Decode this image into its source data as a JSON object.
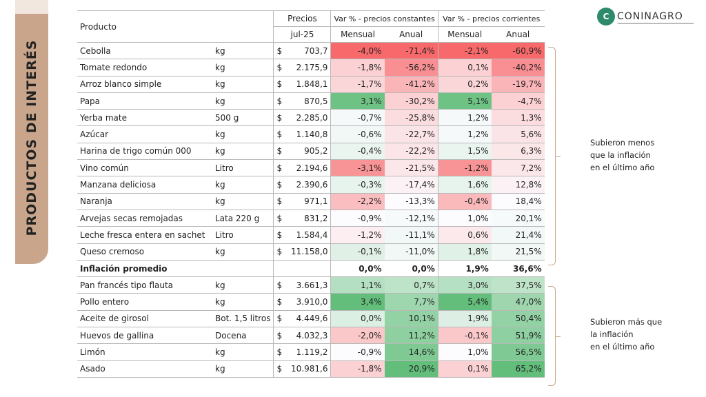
{
  "sidebar": {
    "title": "PRODUCTOS DE INTERÉS"
  },
  "logo": {
    "text": "CONINAGRO"
  },
  "header": {
    "producto": "Producto",
    "precios": "Precios",
    "mes": "jul-25",
    "constantes": "Var % - precios constantes",
    "corrientes": "Var % - precios corrientes",
    "mensual": "Mensual",
    "anual": "Anual"
  },
  "colors": {
    "red": "#f8696b",
    "white": "#fcfcff",
    "green": "#63be7b",
    "bracket": "#c9a68b"
  },
  "rows": [
    {
      "p": "Cebolla",
      "u": "kg",
      "cur": "$",
      "price": "703,7",
      "m1": "-4,0%",
      "a1": "-71,4%",
      "m2": "-2,1%",
      "a2": "-60,9%"
    },
    {
      "p": "Tomate redondo",
      "u": "kg",
      "cur": "$",
      "price": "2.175,9",
      "m1": "-1,8%",
      "a1": "-56,2%",
      "m2": "0,1%",
      "a2": "-40,2%"
    },
    {
      "p": "Arroz blanco simple",
      "u": "kg",
      "cur": "$",
      "price": "1.848,1",
      "m1": "-1,7%",
      "a1": "-41,2%",
      "m2": "0,2%",
      "a2": "-19,7%"
    },
    {
      "p": "Papa",
      "u": "kg",
      "cur": "$",
      "price": "870,5",
      "m1": "3,1%",
      "a1": "-30,2%",
      "m2": "5,1%",
      "a2": "-4,7%"
    },
    {
      "p": "Yerba mate",
      "u": "500 g",
      "cur": "$",
      "price": "2.285,0",
      "m1": "-0,7%",
      "a1": "-25,8%",
      "m2": "1,2%",
      "a2": "1,3%"
    },
    {
      "p": "Azúcar",
      "u": "kg",
      "cur": "$",
      "price": "1.140,8",
      "m1": "-0,6%",
      "a1": "-22,7%",
      "m2": "1,2%",
      "a2": "5,6%"
    },
    {
      "p": "Harina de trigo común 000",
      "u": "kg",
      "cur": "$",
      "price": "905,2",
      "m1": "-0,4%",
      "a1": "-22,2%",
      "m2": "1,5%",
      "a2": "6,3%"
    },
    {
      "p": "Vino común",
      "u": "Litro",
      "cur": "$",
      "price": "2.194,6",
      "m1": "-3,1%",
      "a1": "-21,5%",
      "m2": "-1,2%",
      "a2": "7,2%"
    },
    {
      "p": "Manzana deliciosa",
      "u": "kg",
      "cur": "$",
      "price": "2.390,6",
      "m1": "-0,3%",
      "a1": "-17,4%",
      "m2": "1,6%",
      "a2": "12,8%"
    },
    {
      "p": "Naranja",
      "u": "kg",
      "cur": "$",
      "price": "971,1",
      "m1": "-2,2%",
      "a1": "-13,3%",
      "m2": "-0,4%",
      "a2": "18,4%"
    },
    {
      "p": "Arvejas secas remojadas",
      "u": "Lata 220 g",
      "cur": "$",
      "price": "831,2",
      "m1": "-0,9%",
      "a1": "-12,1%",
      "m2": "1,0%",
      "a2": "20,1%"
    },
    {
      "p": "Leche fresca entera en sachet",
      "u": "Litro",
      "cur": "$",
      "price": "1.584,4",
      "m1": "-1,2%",
      "a1": "-11,1%",
      "m2": "0,6%",
      "a2": "21,4%"
    },
    {
      "p": "Queso cremoso",
      "u": "kg",
      "cur": "$",
      "price": "11.158,0",
      "m1": "-0,1%",
      "a1": "-11,0%",
      "m2": "1,8%",
      "a2": "21,5%"
    },
    {
      "p": "Inflación promedio",
      "u": "",
      "cur": "",
      "price": "",
      "m1": "0,0%",
      "a1": "0,0%",
      "m2": "1,9%",
      "a2": "36,6%",
      "bold": true
    },
    {
      "p": "Pan francés tipo flauta",
      "u": "kg",
      "cur": "$",
      "price": "3.661,3",
      "m1": "1,1%",
      "a1": "0,7%",
      "m2": "3,0%",
      "a2": "37,5%"
    },
    {
      "p": "Pollo entero",
      "u": "kg",
      "cur": "$",
      "price": "3.910,0",
      "m1": "3,4%",
      "a1": "7,7%",
      "m2": "5,4%",
      "a2": "47,0%"
    },
    {
      "p": "Aceite de girosol",
      "u": "Bot. 1,5 litros",
      "cur": "$",
      "price": "4.449,6",
      "m1": "0,0%",
      "a1": "10,1%",
      "m2": "1,9%",
      "a2": "50,4%"
    },
    {
      "p": "Huevos de gallina",
      "u": "Docena",
      "cur": "$",
      "price": "4.032,3",
      "m1": "-2,0%",
      "a1": "11,2%",
      "m2": "-0,1%",
      "a2": "51,9%"
    },
    {
      "p": "Limón",
      "u": "kg",
      "cur": "$",
      "price": "1.119,2",
      "m1": "-0,9%",
      "a1": "14,6%",
      "m2": "1,0%",
      "a2": "56,5%"
    },
    {
      "p": "Asado",
      "u": "kg",
      "cur": "$",
      "price": "10.981,6",
      "m1": "-1,8%",
      "a1": "20,9%",
      "m2": "0,1%",
      "a2": "65,2%"
    }
  ],
  "notes": {
    "less": [
      "Subieron menos",
      "que la inflación",
      "en el último año"
    ],
    "more": [
      "Subieron más que",
      "la inflación",
      "en el último año"
    ]
  }
}
